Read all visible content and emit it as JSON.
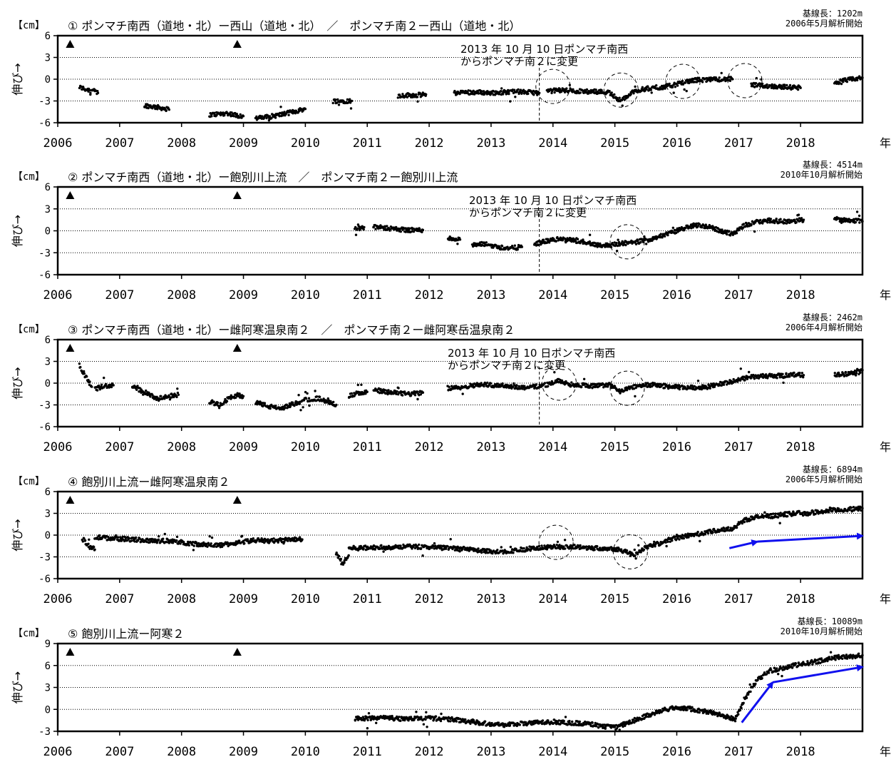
{
  "chart_data": [
    {
      "type": "scatter",
      "title": "① ポンマチ南西（道地・北）ー西山（道地・北）　／　ポンマチ南２ー西山（道地・北）",
      "baseline_label": "基線長：1202m",
      "start_label": "2006年5月解析開始",
      "ylabel": "伸び→",
      "yunit": "【cm】",
      "xunit": "年",
      "ylim": [
        -6,
        6
      ],
      "yticks": [
        "6",
        "3",
        "0",
        "-3",
        "-6"
      ],
      "xlim": [
        2006,
        2019.0
      ],
      "xticks": [
        "2006",
        "2007",
        "2008",
        "2009",
        "2010",
        "2011",
        "2012",
        "2013",
        "2014",
        "2015",
        "2016",
        "2017",
        "2018"
      ],
      "grid": "dotted at 3, 0, -3",
      "triangles": [
        2006.2,
        2008.9
      ],
      "note": [
        "2013 年 10 月 10 日ポンマチ南西",
        "からポンマチ南２に変更"
      ],
      "station_change": 2013.78,
      "circles": [
        [
          2014.0,
          -1.0
        ],
        [
          2015.1,
          -1.5
        ],
        [
          2016.1,
          -0.3
        ],
        [
          2017.1,
          -0.2
        ]
      ],
      "arrows": [],
      "segments": [
        {
          "x": [
            2006.35,
            2006.45,
            2006.55,
            2006.65
          ],
          "y": [
            -1.1,
            -1.4,
            -1.5,
            -1.9
          ]
        },
        {
          "x": [
            2007.4,
            2007.55,
            2007.7,
            2007.8
          ],
          "y": [
            -3.6,
            -3.8,
            -4.0,
            -4.2
          ]
        },
        {
          "x": [
            2008.45,
            2008.6,
            2008.75,
            2008.9,
            2009.0
          ],
          "y": [
            -4.9,
            -4.8,
            -4.7,
            -5.0,
            -5.1
          ]
        },
        {
          "x": [
            2009.2,
            2009.4,
            2009.6,
            2009.8,
            2010.0
          ],
          "y": [
            -5.4,
            -5.2,
            -4.9,
            -4.5,
            -4.1
          ]
        },
        {
          "x": [
            2010.45,
            2010.6,
            2010.75
          ],
          "y": [
            -3.0,
            -3.0,
            -3.0
          ]
        },
        {
          "x": [
            2011.5,
            2011.65,
            2011.8,
            2011.95
          ],
          "y": [
            -2.3,
            -2.2,
            -2.2,
            -2.1
          ]
        },
        {
          "x": [
            2012.4,
            2012.6,
            2012.8,
            2013.0,
            2013.2,
            2013.4,
            2013.6,
            2013.78
          ],
          "y": [
            -1.9,
            -1.8,
            -1.8,
            -1.9,
            -1.8,
            -1.7,
            -1.8,
            -1.9
          ]
        },
        {
          "x": [
            2013.9,
            2014.1,
            2014.3,
            2014.5,
            2014.7,
            2014.9,
            2015.1,
            2015.3,
            2015.5,
            2015.7,
            2015.9,
            2016.1,
            2016.3,
            2016.5,
            2016.7,
            2016.9
          ],
          "y": [
            -1.7,
            -1.5,
            -1.6,
            -1.7,
            -1.7,
            -1.8,
            -3.0,
            -1.7,
            -1.3,
            -1.2,
            -0.9,
            -0.5,
            -0.1,
            -0.1,
            0.0,
            0.0
          ]
        },
        {
          "x": [
            2017.2,
            2017.4,
            2017.6,
            2017.8,
            2018.0
          ],
          "y": [
            -0.8,
            -0.9,
            -1.0,
            -1.1,
            -1.2
          ]
        },
        {
          "x": [
            2018.55,
            2018.7,
            2018.85,
            2019.0
          ],
          "y": [
            -0.5,
            -0.2,
            0.0,
            0.2
          ]
        }
      ]
    },
    {
      "type": "scatter",
      "title": "② ポンマチ南西（道地・北）ー飽別川上流　／　ポンマチ南２ー飽別川上流",
      "baseline_label": "基線長：4514m",
      "start_label": "2010年10月解析開始",
      "ylabel": "伸び→",
      "yunit": "【cm】",
      "xunit": "年",
      "ylim": [
        -6,
        6
      ],
      "yticks": [
        "6",
        "3",
        "0",
        "-3",
        "-6"
      ],
      "xlim": [
        2006,
        2019.0
      ],
      "xticks": [
        "2006",
        "2007",
        "2008",
        "2009",
        "2010",
        "2011",
        "2012",
        "2013",
        "2014",
        "2015",
        "2016",
        "2017",
        "2018"
      ],
      "grid": "dotted at 3, 0, -3",
      "triangles": [
        2006.2,
        2008.9
      ],
      "note": [
        "2013 年 10 月 10 日ポンマチ南西",
        "からポンマチ南２に変更"
      ],
      "station_change": 2013.78,
      "circles": [
        [
          2015.2,
          -1.5
        ]
      ],
      "arrows": [],
      "segments": [
        {
          "x": [
            2010.8,
            2010.95
          ],
          "y": [
            0.3,
            0.5
          ]
        },
        {
          "x": [
            2011.1,
            2011.3,
            2011.5,
            2011.7,
            2011.9
          ],
          "y": [
            0.5,
            0.4,
            0.2,
            0.1,
            0.1
          ]
        },
        {
          "x": [
            2012.3,
            2012.5
          ],
          "y": [
            -1.0,
            -1.2
          ]
        },
        {
          "x": [
            2012.7,
            2012.9,
            2013.1,
            2013.3,
            2013.5
          ],
          "y": [
            -2.0,
            -1.8,
            -2.2,
            -2.4,
            -2.2
          ]
        },
        {
          "x": [
            2013.7,
            2013.9,
            2014.1,
            2014.3,
            2014.5,
            2014.7,
            2014.9,
            2015.1,
            2015.3,
            2015.5,
            2015.7,
            2015.9,
            2016.1,
            2016.3,
            2016.5,
            2016.7,
            2016.9,
            2017.1,
            2017.3,
            2017.5,
            2017.7,
            2017.9,
            2018.05
          ],
          "y": [
            -1.8,
            -1.4,
            -1.1,
            -1.3,
            -1.5,
            -1.9,
            -2.0,
            -1.7,
            -1.6,
            -1.3,
            -0.8,
            -0.3,
            0.3,
            0.8,
            0.6,
            0.0,
            -0.4,
            0.8,
            1.2,
            1.4,
            1.3,
            1.3,
            1.5
          ]
        },
        {
          "x": [
            2018.55,
            2018.75,
            2019.0
          ],
          "y": [
            1.6,
            1.5,
            1.3
          ]
        }
      ]
    },
    {
      "type": "scatter",
      "title": "③ ポンマチ南西（道地・北）ー雌阿寒温泉南２　／　ポンマチ南２ー雌阿寒岳温泉南２",
      "baseline_label": "基線長：2462m",
      "start_label": "2006年4月解析開始",
      "ylabel": "伸び→",
      "yunit": "【cm】",
      "xunit": "年",
      "ylim": [
        -6,
        6
      ],
      "yticks": [
        "6",
        "3",
        "0",
        "-3",
        "-6"
      ],
      "xlim": [
        2006,
        2019.0
      ],
      "xticks": [
        "2006",
        "2007",
        "2008",
        "2009",
        "2010",
        "2011",
        "2012",
        "2013",
        "2014",
        "2015",
        "2016",
        "2017",
        "2018"
      ],
      "grid": "dotted at 3, 0, -3",
      "triangles": [
        2006.2,
        2008.9
      ],
      "note": [
        "2013 年 10 月 10 日ポンマチ南西",
        "からポンマチ南２に変更"
      ],
      "station_change": 2013.78,
      "circles": [
        [
          2014.1,
          0.0
        ],
        [
          2015.2,
          -0.7
        ]
      ],
      "arrows": [],
      "segments": [
        {
          "x": [
            2006.35,
            2006.45,
            2006.55
          ],
          "y": [
            2.2,
            1.0,
            -0.5
          ]
        },
        {
          "x": [
            2006.6,
            2006.75,
            2006.9
          ],
          "y": [
            -0.8,
            -0.4,
            -0.3
          ]
        },
        {
          "x": [
            2007.2,
            2007.4,
            2007.6,
            2007.8,
            2007.95
          ],
          "y": [
            -0.5,
            -1.2,
            -2.2,
            -1.8,
            -1.6
          ]
        },
        {
          "x": [
            2008.45,
            2008.6,
            2008.75,
            2008.9,
            2009.0
          ],
          "y": [
            -2.5,
            -3.0,
            -2.2,
            -1.6,
            -1.8
          ]
        },
        {
          "x": [
            2009.2,
            2009.4,
            2009.6,
            2009.8,
            2010.0,
            2010.2,
            2010.4,
            2010.5
          ],
          "y": [
            -2.6,
            -3.2,
            -3.5,
            -2.9,
            -2.3,
            -2.1,
            -2.6,
            -3.0
          ]
        },
        {
          "x": [
            2010.7,
            2010.85,
            2011.0
          ],
          "y": [
            -1.8,
            -1.4,
            -1.2
          ]
        },
        {
          "x": [
            2011.1,
            2011.3,
            2011.5,
            2011.7,
            2011.9
          ],
          "y": [
            -1.0,
            -1.2,
            -1.4,
            -1.5,
            -1.3
          ]
        },
        {
          "x": [
            2012.3,
            2012.5,
            2012.7,
            2012.9,
            2013.1,
            2013.3,
            2013.5,
            2013.7,
            2013.9,
            2014.1,
            2014.3,
            2014.5,
            2014.7,
            2014.9,
            2015.1,
            2015.3,
            2015.5,
            2015.7,
            2015.9,
            2016.1,
            2016.3,
            2016.5,
            2016.7,
            2016.9,
            2017.1,
            2017.3,
            2017.5,
            2017.7,
            2017.9,
            2018.05
          ],
          "y": [
            -0.7,
            -0.6,
            -0.3,
            -0.2,
            -0.3,
            -0.4,
            -0.6,
            -0.5,
            -0.2,
            0.3,
            -0.2,
            -0.3,
            -0.4,
            -0.2,
            -1.2,
            -0.5,
            -0.2,
            -0.3,
            -0.5,
            -0.6,
            -0.6,
            -0.5,
            -0.1,
            0.2,
            0.7,
            0.9,
            1.0,
            1.0,
            1.2,
            1.1
          ]
        },
        {
          "x": [
            2018.55,
            2018.75,
            2019.0
          ],
          "y": [
            1.1,
            1.3,
            1.8
          ]
        }
      ]
    },
    {
      "type": "scatter",
      "title": "④ 飽別川上流ー雌阿寒温泉南２",
      "baseline_label": "基線長：6894m",
      "start_label": "2006年5月解析開始",
      "ylabel": "伸び→",
      "yunit": "【cm】",
      "xunit": "年",
      "ylim": [
        -6,
        6
      ],
      "yticks": [
        "6",
        "3",
        "0",
        "-3",
        "-6"
      ],
      "xlim": [
        2006,
        2019.0
      ],
      "xticks": [
        "2006",
        "2007",
        "2008",
        "2009",
        "2010",
        "2011",
        "2012",
        "2013",
        "2014",
        "2015",
        "2016",
        "2017",
        "2018"
      ],
      "grid": "dotted at 3, 0, -3",
      "triangles": [
        2006.2,
        2008.9
      ],
      "note": [],
      "station_change": null,
      "circles": [
        [
          2014.05,
          -1.0
        ],
        [
          2015.25,
          -2.3
        ]
      ],
      "arrows": [
        [
          [
            2016.85,
            -1.8
          ],
          [
            2017.3,
            -0.9
          ]
        ],
        [
          [
            2017.3,
            -0.9
          ],
          [
            2019.0,
            -0.1
          ]
        ]
      ],
      "segments": [
        {
          "x": [
            2006.4,
            2006.5,
            2006.6
          ],
          "y": [
            -0.5,
            -1.5,
            -2.0
          ]
        },
        {
          "x": [
            2006.6,
            2006.8,
            2007.0,
            2007.2,
            2007.4,
            2007.6,
            2007.8,
            2008.0,
            2008.2,
            2008.4,
            2008.6,
            2008.8,
            2009.0,
            2009.2,
            2009.4,
            2009.6,
            2009.8,
            2009.95
          ],
          "y": [
            -0.3,
            -0.4,
            -0.5,
            -0.6,
            -0.7,
            -0.8,
            -0.8,
            -1.0,
            -1.2,
            -1.3,
            -1.4,
            -1.2,
            -0.9,
            -0.7,
            -0.8,
            -0.7,
            -0.6,
            -0.6
          ]
        },
        {
          "x": [
            2010.5,
            2010.6,
            2010.7
          ],
          "y": [
            -2.5,
            -4.0,
            -2.8
          ]
        },
        {
          "x": [
            2010.7,
            2010.9,
            2011.1,
            2011.3,
            2011.5,
            2011.7,
            2011.9,
            2012.1,
            2012.3,
            2012.5,
            2012.7,
            2012.9,
            2013.1,
            2013.3,
            2013.5,
            2013.7,
            2013.9,
            2014.1,
            2014.3,
            2014.5,
            2014.7,
            2014.9,
            2015.1,
            2015.3,
            2015.5,
            2015.7,
            2015.9,
            2016.1,
            2016.3,
            2016.5,
            2016.7,
            2016.9,
            2017.1,
            2017.3,
            2017.5,
            2017.7,
            2017.9,
            2018.1,
            2018.3,
            2018.5,
            2018.7,
            2018.9,
            2019.0
          ],
          "y": [
            -1.8,
            -1.8,
            -1.7,
            -1.7,
            -1.6,
            -1.6,
            -1.6,
            -1.7,
            -1.8,
            -1.9,
            -2.0,
            -2.2,
            -2.3,
            -2.2,
            -2.0,
            -1.8,
            -1.7,
            -1.6,
            -1.6,
            -1.7,
            -1.8,
            -1.8,
            -2.0,
            -2.8,
            -1.6,
            -1.2,
            -0.6,
            -0.2,
            0.1,
            0.4,
            0.7,
            0.9,
            2.1,
            2.5,
            2.6,
            2.8,
            3.0,
            3.0,
            3.2,
            3.4,
            3.5,
            3.6,
            3.7
          ]
        }
      ]
    },
    {
      "type": "scatter",
      "title": "⑤ 飽別川上流ー阿寒２",
      "baseline_label": "基線長：10089m",
      "start_label": "2010年10月解析開始",
      "ylabel": "伸び→",
      "yunit": "【cm】",
      "xunit": "年",
      "ylim": [
        -3,
        9
      ],
      "yticks": [
        "9",
        "6",
        "3",
        "0",
        "-3"
      ],
      "xlim": [
        2006,
        2019.0
      ],
      "xticks": [
        "2006",
        "2007",
        "2008",
        "2009",
        "2010",
        "2011",
        "2012",
        "2013",
        "2014",
        "2015",
        "2016",
        "2017",
        "2018"
      ],
      "grid": "dotted at 6, 3, 0",
      "triangles": [
        2006.2,
        2008.9
      ],
      "note": [],
      "station_change": null,
      "circles": [],
      "arrows": [
        [
          [
            2017.05,
            -1.8
          ],
          [
            2017.55,
            3.7
          ]
        ],
        [
          [
            2017.55,
            3.7
          ],
          [
            2019.0,
            5.8
          ]
        ]
      ],
      "segments": [
        {
          "x": [
            2010.8,
            2011.0,
            2011.2,
            2011.4,
            2011.6,
            2011.8,
            2012.0,
            2012.2,
            2012.4,
            2012.6,
            2012.8,
            2013.0,
            2013.2,
            2013.4,
            2013.6,
            2013.8,
            2014.0,
            2014.2,
            2014.4,
            2014.6,
            2014.8,
            2015.0,
            2015.2,
            2015.4,
            2015.6,
            2015.8,
            2016.0,
            2016.2,
            2016.4,
            2016.6,
            2016.8,
            2016.95,
            2017.1,
            2017.3,
            2017.5,
            2017.7,
            2017.9,
            2018.1,
            2018.3,
            2018.5,
            2018.7,
            2018.9,
            2019.0
          ],
          "y": [
            -1.3,
            -1.2,
            -1.1,
            -1.2,
            -1.3,
            -1.2,
            -1.2,
            -1.3,
            -1.4,
            -1.6,
            -1.8,
            -2.0,
            -2.1,
            -2.0,
            -1.9,
            -1.8,
            -1.7,
            -1.8,
            -1.9,
            -2.0,
            -2.3,
            -2.5,
            -1.9,
            -1.2,
            -0.6,
            -0.1,
            0.3,
            0.1,
            -0.2,
            -0.5,
            -1.0,
            -1.4,
            1.5,
            4.0,
            5.3,
            5.6,
            6.0,
            6.3,
            6.6,
            7.0,
            7.2,
            7.3,
            7.4
          ]
        }
      ]
    }
  ]
}
